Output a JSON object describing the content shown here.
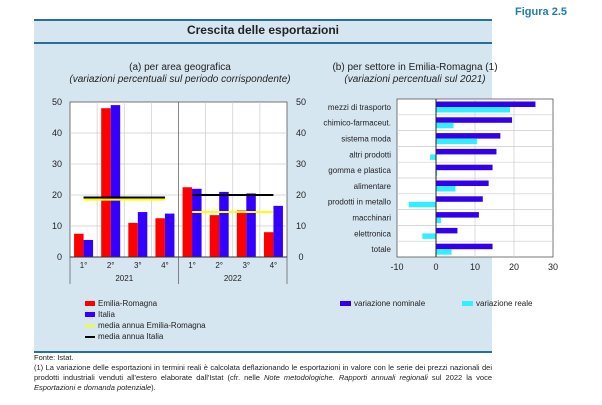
{
  "figure_label": "Figura 2.5",
  "title": "Crescita delle esportazioni",
  "colors": {
    "emilia_romagna": "#ff0000",
    "italia": "#3300ff",
    "media_er": "#ffff00",
    "media_it": "#000000",
    "nominale": "#3300ee",
    "reale": "#33eeff"
  },
  "panel_a": {
    "title": "(a) per area geografica",
    "subtitle": "(variazioni percentuali sul periodo corrispondente)"
  },
  "panel_b": {
    "title": "(b) per settore in Emilia-Romagna (1)",
    "subtitle": "(variazioni percentuali sul 2021)"
  },
  "legend_a": [
    "Emilia-Romagna",
    "Italia",
    "media annua Emilia-Romagna",
    "media annua Italia"
  ],
  "legend_b": [
    "variazione nominale",
    "variazione reale"
  ],
  "footnote": {
    "source": "Fonte: Istat.",
    "note_part1": "(1) La variazione delle esportazioni in termini reali è calcolata deflazionando le esportazioni in valore con le serie dei prezzi nazionali dei prodotti industriali venduti all'estero elaborate dall'Istat (cfr. nelle ",
    "note_italic1": "Note metodologiche. Rapporti annuali regionali",
    "note_part2": " sul 2022 la voce ",
    "note_italic2": "Esportazioni e domanda potenziale",
    "note_part3": ")."
  },
  "chart_data": [
    {
      "type": "bar",
      "title": "(a) per area geografica",
      "subtitle": "(variazioni percentuali sul periodo corrispondente)",
      "categories": [
        "1°",
        "2°",
        "3°",
        "4°",
        "1°",
        "2°",
        "3°",
        "4°"
      ],
      "groups": [
        {
          "label": "2021",
          "quarters": 4
        },
        {
          "label": "2022",
          "quarters": 4
        }
      ],
      "series": [
        {
          "name": "Emilia-Romagna",
          "values": [
            7.5,
            48,
            11,
            12.5,
            22.5,
            13.5,
            15,
            8
          ]
        },
        {
          "name": "Italia",
          "values": [
            5.5,
            49,
            14.5,
            14,
            22,
            21,
            20.5,
            16.5
          ]
        }
      ],
      "lines": [
        {
          "name": "media annua Emilia-Romagna",
          "values": [
            18.5,
            14.5
          ]
        },
        {
          "name": "media annua Italia",
          "values": [
            19.2,
            20
          ]
        }
      ],
      "ylim": [
        0,
        50
      ],
      "yticks": [
        0,
        10,
        20,
        30,
        40,
        50
      ],
      "grid": true,
      "legend": "bottom"
    },
    {
      "type": "bar",
      "orientation": "horizontal",
      "title": "(b) per settore in Emilia-Romagna (1)",
      "subtitle": "(variazioni percentuali sul 2021)",
      "categories": [
        "mezzi di trasporto",
        "chimico-farmaceut.",
        "sistema moda",
        "altri prodotti",
        "gomma e plastica",
        "alimentare",
        "prodotti in metallo",
        "macchinari",
        "elettronica",
        "totale"
      ],
      "series": [
        {
          "name": "variazione nominale",
          "values": [
            25.5,
            19.5,
            16.5,
            15.5,
            14.5,
            13.5,
            12,
            11,
            5.5,
            14.5
          ]
        },
        {
          "name": "variazione reale",
          "values": [
            19,
            4.5,
            10.5,
            -1.5,
            0.3,
            5,
            -7,
            1.3,
            -3.5,
            4
          ]
        }
      ],
      "xlim": [
        -10,
        30
      ],
      "xticks": [
        -10,
        0,
        10,
        20,
        30
      ],
      "grid": true,
      "legend": "bottom"
    }
  ]
}
